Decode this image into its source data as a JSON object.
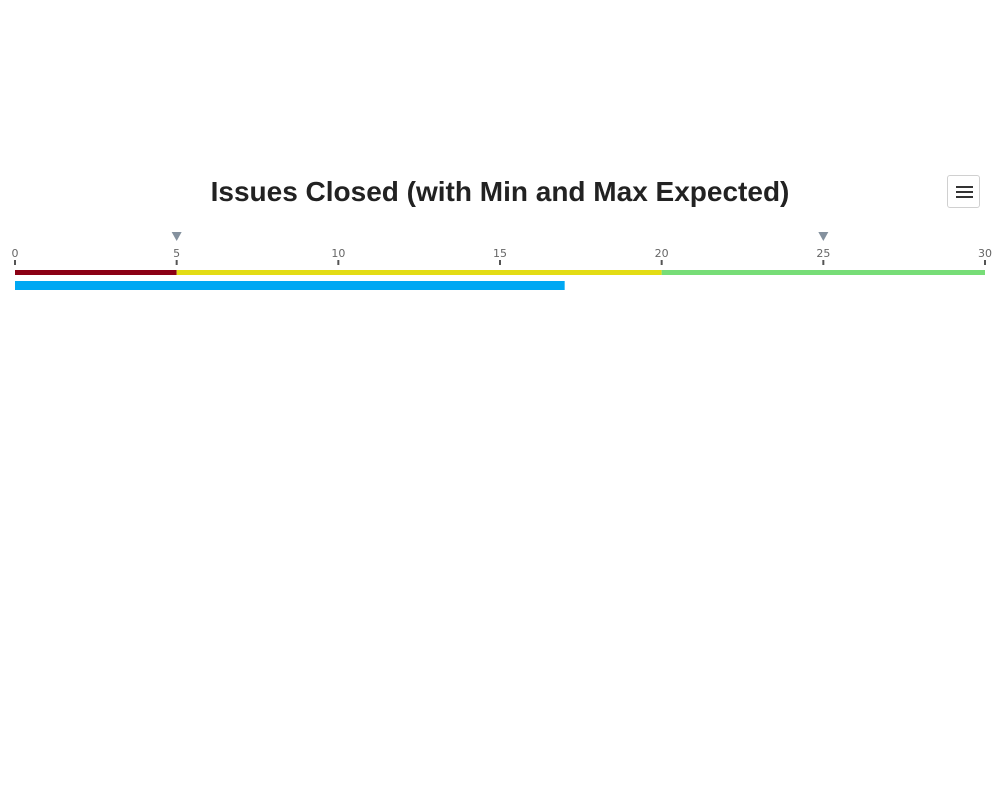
{
  "chart_data": {
    "type": "bar",
    "title": "Issues Closed (with Min and Max Expected)",
    "xlim": [
      0,
      30
    ],
    "ticks": [
      0,
      5,
      10,
      15,
      20,
      25,
      30
    ],
    "bands": [
      {
        "from": 0,
        "to": 5,
        "color": "#8b0014"
      },
      {
        "from": 5,
        "to": 20,
        "color": "#e3dc14"
      },
      {
        "from": 20,
        "to": 30,
        "color": "#77dd77"
      }
    ],
    "value": 17,
    "value_color": "#00a8f3",
    "markers": [
      5,
      25
    ],
    "marker_color": "#84919e",
    "grid": false
  },
  "menu": {
    "icon": "hamburger-menu-icon"
  }
}
